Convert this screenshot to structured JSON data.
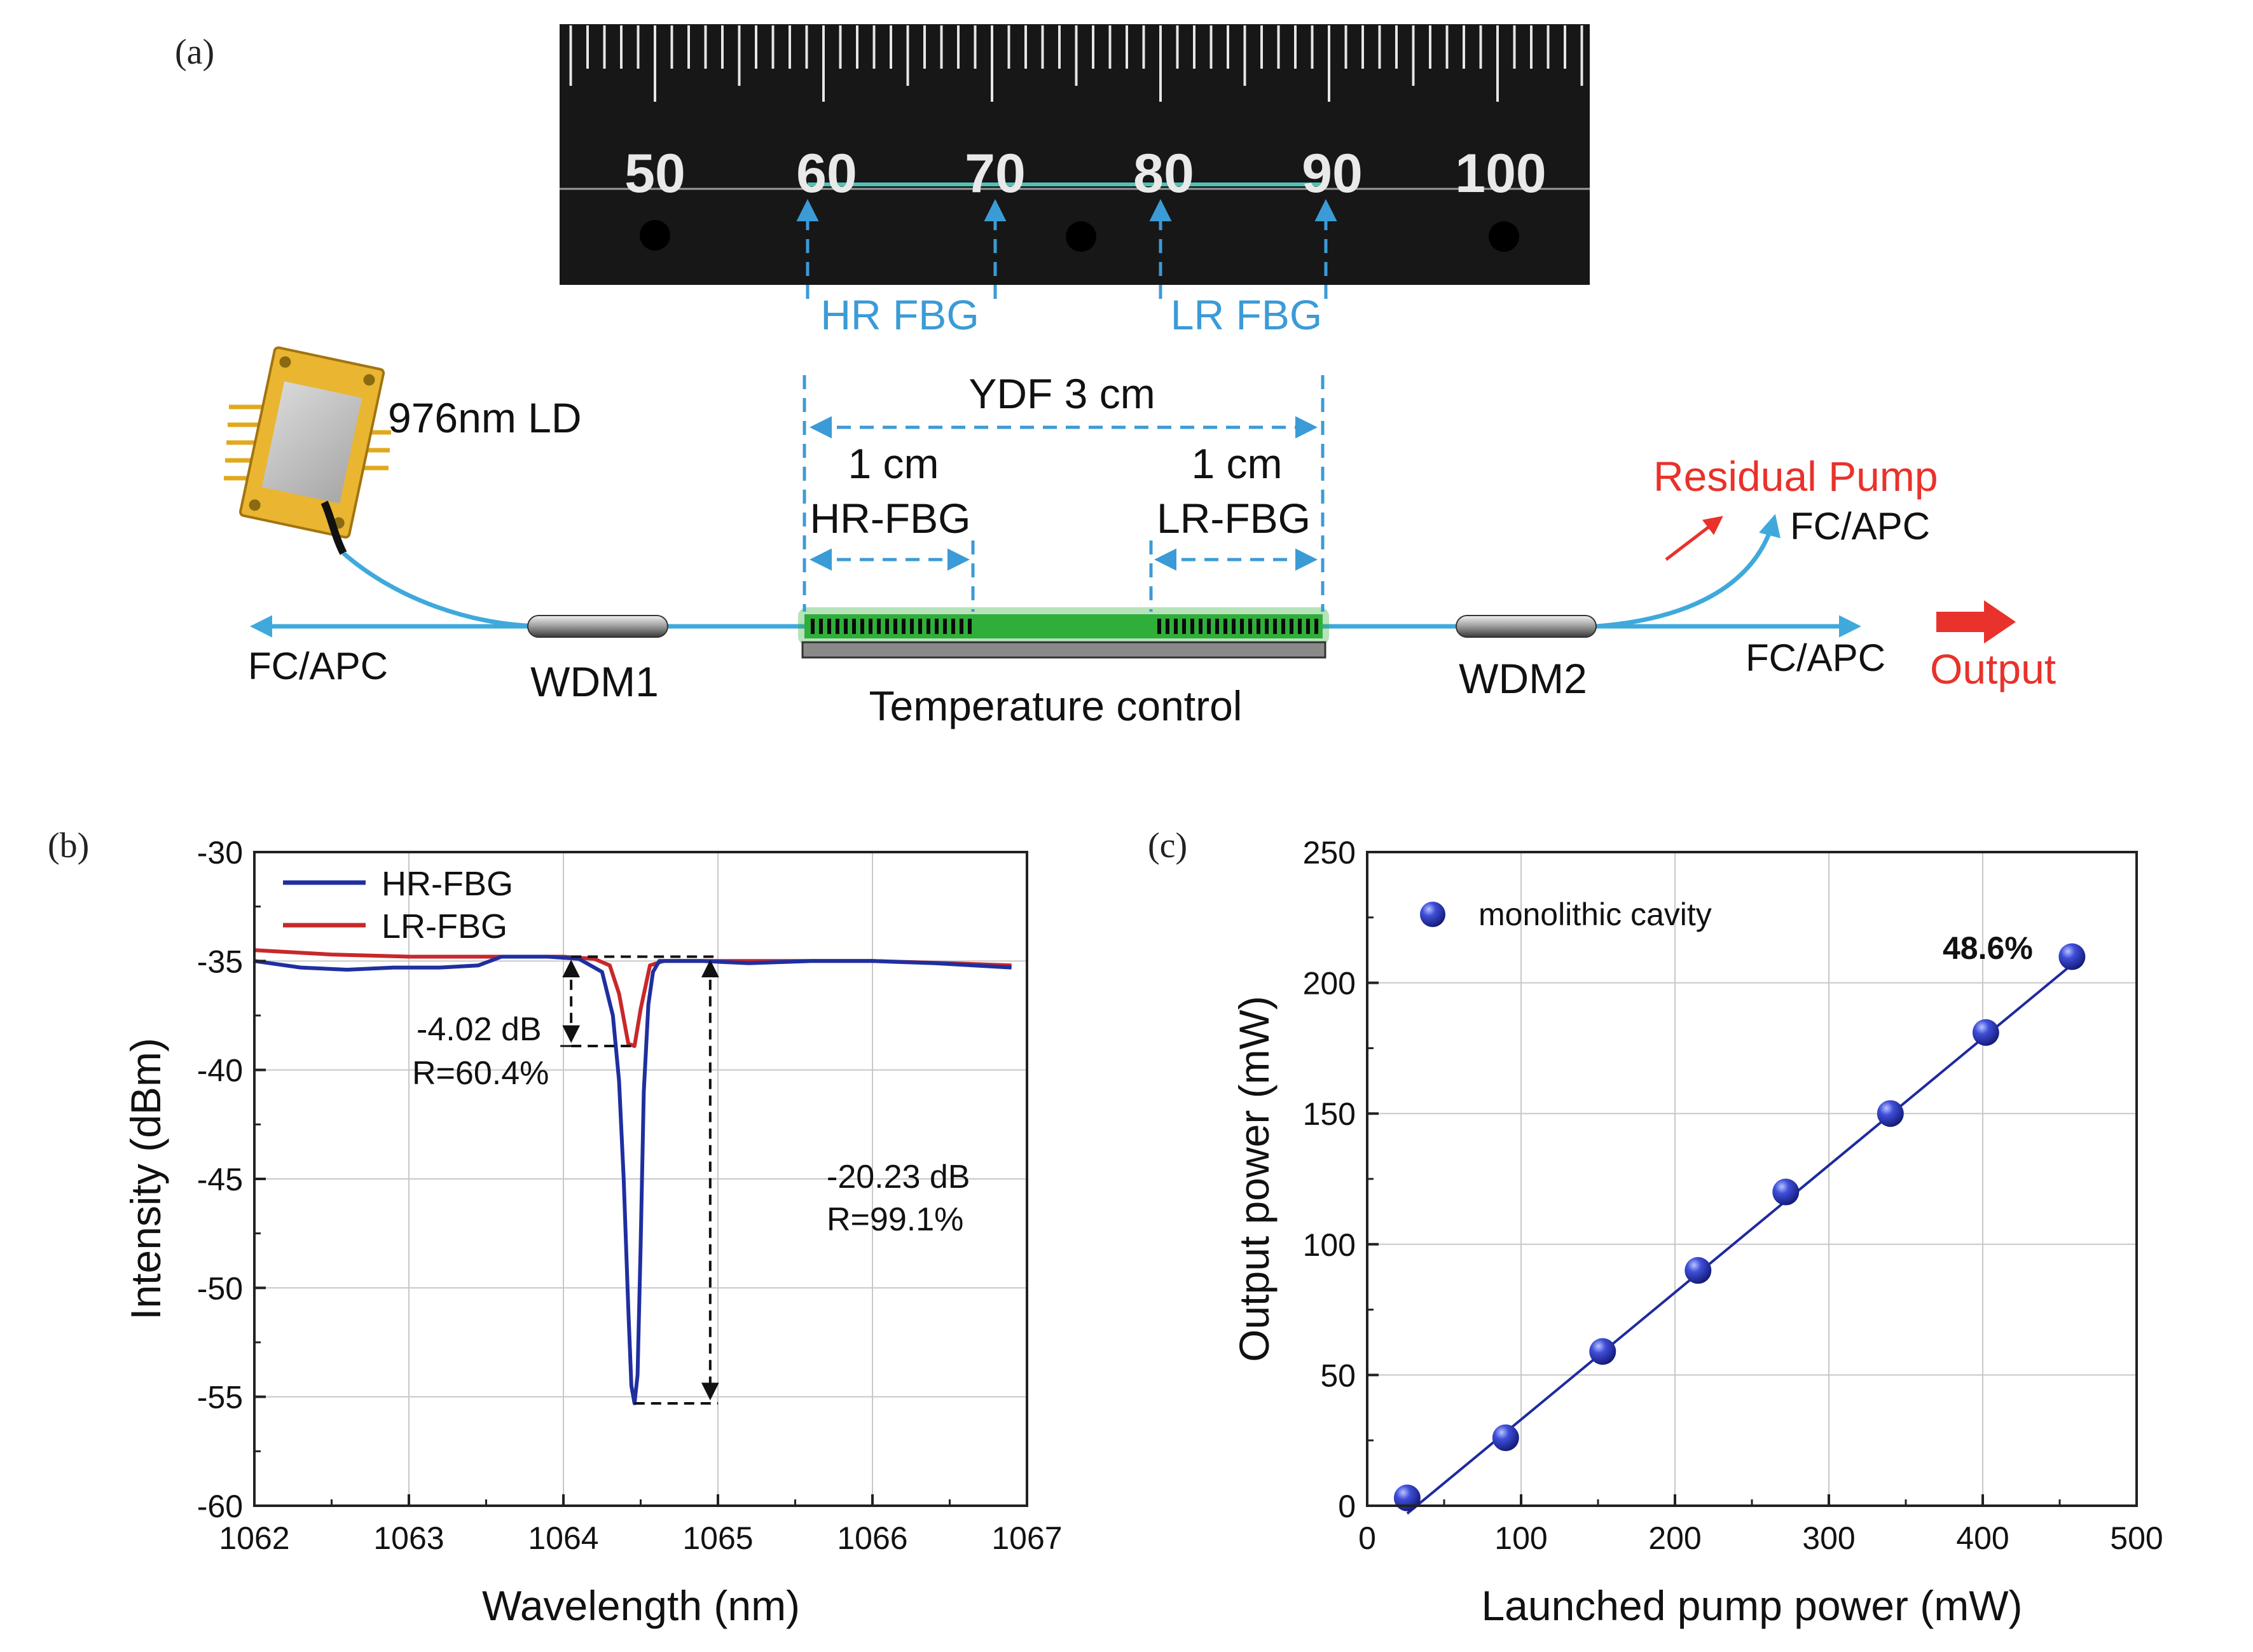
{
  "panel_a": {
    "label": "(a)",
    "ruler_numbers": [
      "50",
      "60",
      "70",
      "80",
      "90",
      "100"
    ],
    "hr_fbg_photo_label": "HR FBG",
    "lr_fbg_photo_label": "LR FBG",
    "laser_label": "976nm LD",
    "ydf_label": "YDF 3 cm",
    "hr_length": "1 cm",
    "hr_name": "HR-FBG",
    "lr_length": "1 cm",
    "lr_name": "LR-FBG",
    "residual_pump": "Residual  Pump",
    "fc_apc_left": "FC/APC",
    "fc_apc_top_right": "FC/APC",
    "fc_apc_right": "FC/APC",
    "wdm1": "WDM1",
    "wdm2": "WDM2",
    "temperature_control": "Temperature control",
    "output": "Output",
    "colors": {
      "fiber": "#3fa9dc",
      "annotation": "#3b9bd6",
      "ydf": "#2fae3a",
      "red": "#e8322b"
    }
  },
  "chart_data": [
    {
      "panel": "(b)",
      "type": "line",
      "xlabel": "Wavelength (nm)",
      "ylabel": "Intensity (dBm)",
      "xlim": [
        1062,
        1067
      ],
      "ylim": [
        -60,
        -30
      ],
      "xticks": [
        "1062",
        "1063",
        "1064",
        "1065",
        "1066",
        "1067"
      ],
      "yticks": [
        "-60",
        "-55",
        "-50",
        "-45",
        "-40",
        "-35",
        "-30"
      ],
      "grid": true,
      "legend": "top-left",
      "series": [
        {
          "name": "HR-FBG",
          "color": "#1f2fa0",
          "x": [
            1062.0,
            1062.3,
            1062.6,
            1062.9,
            1063.2,
            1063.45,
            1063.6,
            1063.9,
            1064.1,
            1064.25,
            1064.32,
            1064.36,
            1064.39,
            1064.42,
            1064.44,
            1064.46,
            1064.48,
            1064.5,
            1064.52,
            1064.55,
            1064.58,
            1064.62,
            1064.7,
            1064.9,
            1065.2,
            1065.6,
            1066.0,
            1066.4,
            1066.9
          ],
          "y": [
            -35.0,
            -35.3,
            -35.4,
            -35.3,
            -35.3,
            -35.2,
            -34.8,
            -34.8,
            -34.9,
            -35.5,
            -37.5,
            -40.5,
            -45.0,
            -51.0,
            -54.5,
            -55.3,
            -54.0,
            -48.0,
            -41.0,
            -37.0,
            -35.5,
            -35.0,
            -35.0,
            -35.0,
            -35.1,
            -35.0,
            -35.0,
            -35.1,
            -35.3
          ]
        },
        {
          "name": "LR-FBG",
          "color": "#c8282a",
          "x": [
            1062.0,
            1062.5,
            1063.0,
            1063.5,
            1064.0,
            1064.2,
            1064.3,
            1064.36,
            1064.42,
            1064.46,
            1064.5,
            1064.56,
            1064.65,
            1065.0,
            1065.5,
            1066.0,
            1066.5,
            1066.9
          ],
          "y": [
            -34.5,
            -34.7,
            -34.8,
            -34.8,
            -34.8,
            -34.9,
            -35.2,
            -36.5,
            -38.8,
            -38.9,
            -37.2,
            -35.2,
            -35.0,
            -35.0,
            -35.0,
            -35.0,
            -35.1,
            -35.2
          ]
        }
      ],
      "annotations": [
        {
          "text": "-4.02 dB",
          "line2": "R=60.4%"
        },
        {
          "text": "-20.23 dB",
          "line2": "R=99.1%"
        }
      ]
    },
    {
      "panel": "(c)",
      "type": "scatter",
      "xlabel": "Launched pump power (mW)",
      "ylabel": "Output power (mW)",
      "xlim": [
        0,
        500
      ],
      "ylim": [
        0,
        250
      ],
      "xticks": [
        "0",
        "100",
        "200",
        "300",
        "400",
        "500"
      ],
      "yticks": [
        "0",
        "50",
        "100",
        "150",
        "200",
        "250"
      ],
      "grid": true,
      "legend": "top-left",
      "series": [
        {
          "name": "monolithic cavity",
          "color": "#2a36c4",
          "x": [
            26,
            90,
            153,
            215,
            272,
            340,
            402,
            458
          ],
          "y": [
            3,
            26,
            59,
            90,
            120,
            150,
            181,
            210
          ]
        }
      ],
      "fit_line": {
        "x": [
          26,
          458
        ],
        "y": [
          -3,
          207
        ]
      },
      "slope_label": "48.6%"
    }
  ]
}
